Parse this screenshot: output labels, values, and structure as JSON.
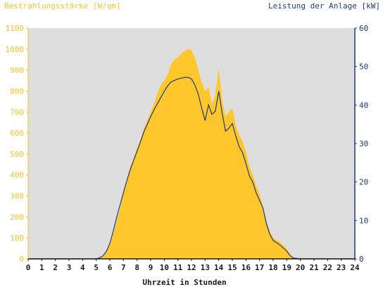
{
  "chart_data": {
    "type": "area",
    "title_left": "Bestrahlungsstärke [W/qm]",
    "title_right": "Leistung der Anlage [kW]",
    "xlabel": "Uhrzeit in Stunden",
    "xlim": [
      0,
      24
    ],
    "ylim_left": [
      0,
      1100
    ],
    "ylim_right": [
      0,
      60
    ],
    "x_ticks": [
      "0",
      "1",
      "2",
      "3",
      "4",
      "5",
      "6",
      "7",
      "8",
      "9",
      "10",
      "11",
      "12",
      "13",
      "14",
      "15",
      "16",
      "17",
      "18",
      "19",
      "20",
      "21",
      "22",
      "23",
      "24"
    ],
    "y_ticks_left": [
      "0",
      "100",
      "200",
      "300",
      "400",
      "500",
      "600",
      "700",
      "800",
      "900",
      "1000",
      "1100"
    ],
    "y_ticks_right": [
      "0",
      "10",
      "20",
      "30",
      "40",
      "50",
      "60"
    ],
    "grid": false,
    "colors": {
      "area": "#ffc72c",
      "line": "#1f3a7a",
      "plot_bg": "#dedede",
      "left_axis": "#f5c22b",
      "right_axis": "#1f3a7a"
    },
    "series": [
      {
        "axis": "left",
        "style": "area",
        "x": [
          0,
          5.0,
          5.25,
          5.5,
          5.75,
          6.0,
          6.25,
          6.5,
          6.75,
          7.0,
          7.25,
          7.5,
          7.75,
          8.0,
          8.25,
          8.5,
          8.75,
          9.0,
          9.25,
          9.5,
          9.75,
          10.0,
          10.25,
          10.5,
          10.75,
          11.0,
          11.25,
          11.5,
          11.75,
          12.0,
          12.25,
          12.5,
          12.75,
          13.0,
          13.25,
          13.5,
          13.75,
          14.0,
          14.25,
          14.5,
          14.75,
          15.0,
          15.25,
          15.5,
          15.75,
          16.0,
          16.25,
          16.5,
          16.75,
          17.0,
          17.25,
          17.5,
          17.75,
          18.0,
          18.5,
          19.0,
          19.25,
          19.5,
          20,
          24
        ],
        "y": [
          0,
          0,
          5,
          15,
          35,
          65,
          120,
          180,
          240,
          310,
          380,
          440,
          480,
          530,
          570,
          620,
          660,
          700,
          740,
          790,
          830,
          850,
          880,
          930,
          950,
          960,
          980,
          990,
          1000,
          995,
          960,
          900,
          840,
          800,
          820,
          740,
          780,
          910,
          760,
          680,
          700,
          720,
          640,
          590,
          560,
          510,
          440,
          400,
          350,
          310,
          250,
          180,
          130,
          100,
          80,
          50,
          20,
          5,
          0,
          0
        ]
      },
      {
        "axis": "right",
        "style": "line",
        "x": [
          0,
          5.0,
          5.25,
          5.5,
          5.75,
          6.0,
          6.25,
          6.5,
          6.75,
          7.0,
          7.25,
          7.5,
          7.75,
          8.0,
          8.25,
          8.5,
          8.75,
          9.0,
          9.25,
          9.5,
          9.75,
          10.0,
          10.25,
          10.5,
          10.75,
          11.0,
          11.25,
          11.5,
          11.75,
          12.0,
          12.25,
          12.5,
          12.75,
          13.0,
          13.25,
          13.5,
          13.75,
          14.0,
          14.25,
          14.5,
          14.75,
          15.0,
          15.25,
          15.5,
          15.75,
          16.0,
          16.25,
          16.5,
          16.75,
          17.0,
          17.25,
          17.5,
          17.75,
          18.0,
          18.5,
          19.0,
          19.25,
          19.5,
          20,
          24
        ],
        "y": [
          0,
          0,
          0.3,
          0.8,
          2.0,
          4.0,
          7.2,
          10.8,
          14.0,
          17.2,
          20.4,
          23.2,
          25.6,
          28.0,
          30.4,
          33.0,
          35.0,
          37.0,
          38.8,
          40.4,
          42.0,
          43.6,
          45.0,
          46.0,
          46.4,
          46.8,
          47.0,
          47.2,
          47.2,
          46.8,
          45.2,
          42.8,
          39.2,
          36.0,
          40.0,
          37.6,
          38.4,
          43.6,
          38.0,
          33.2,
          34.0,
          35.2,
          32.0,
          29.2,
          27.6,
          24.8,
          21.6,
          20.0,
          17.2,
          15.2,
          13.2,
          9.2,
          6.4,
          4.8,
          3.6,
          2.0,
          0.8,
          0.2,
          0,
          0
        ]
      }
    ]
  }
}
